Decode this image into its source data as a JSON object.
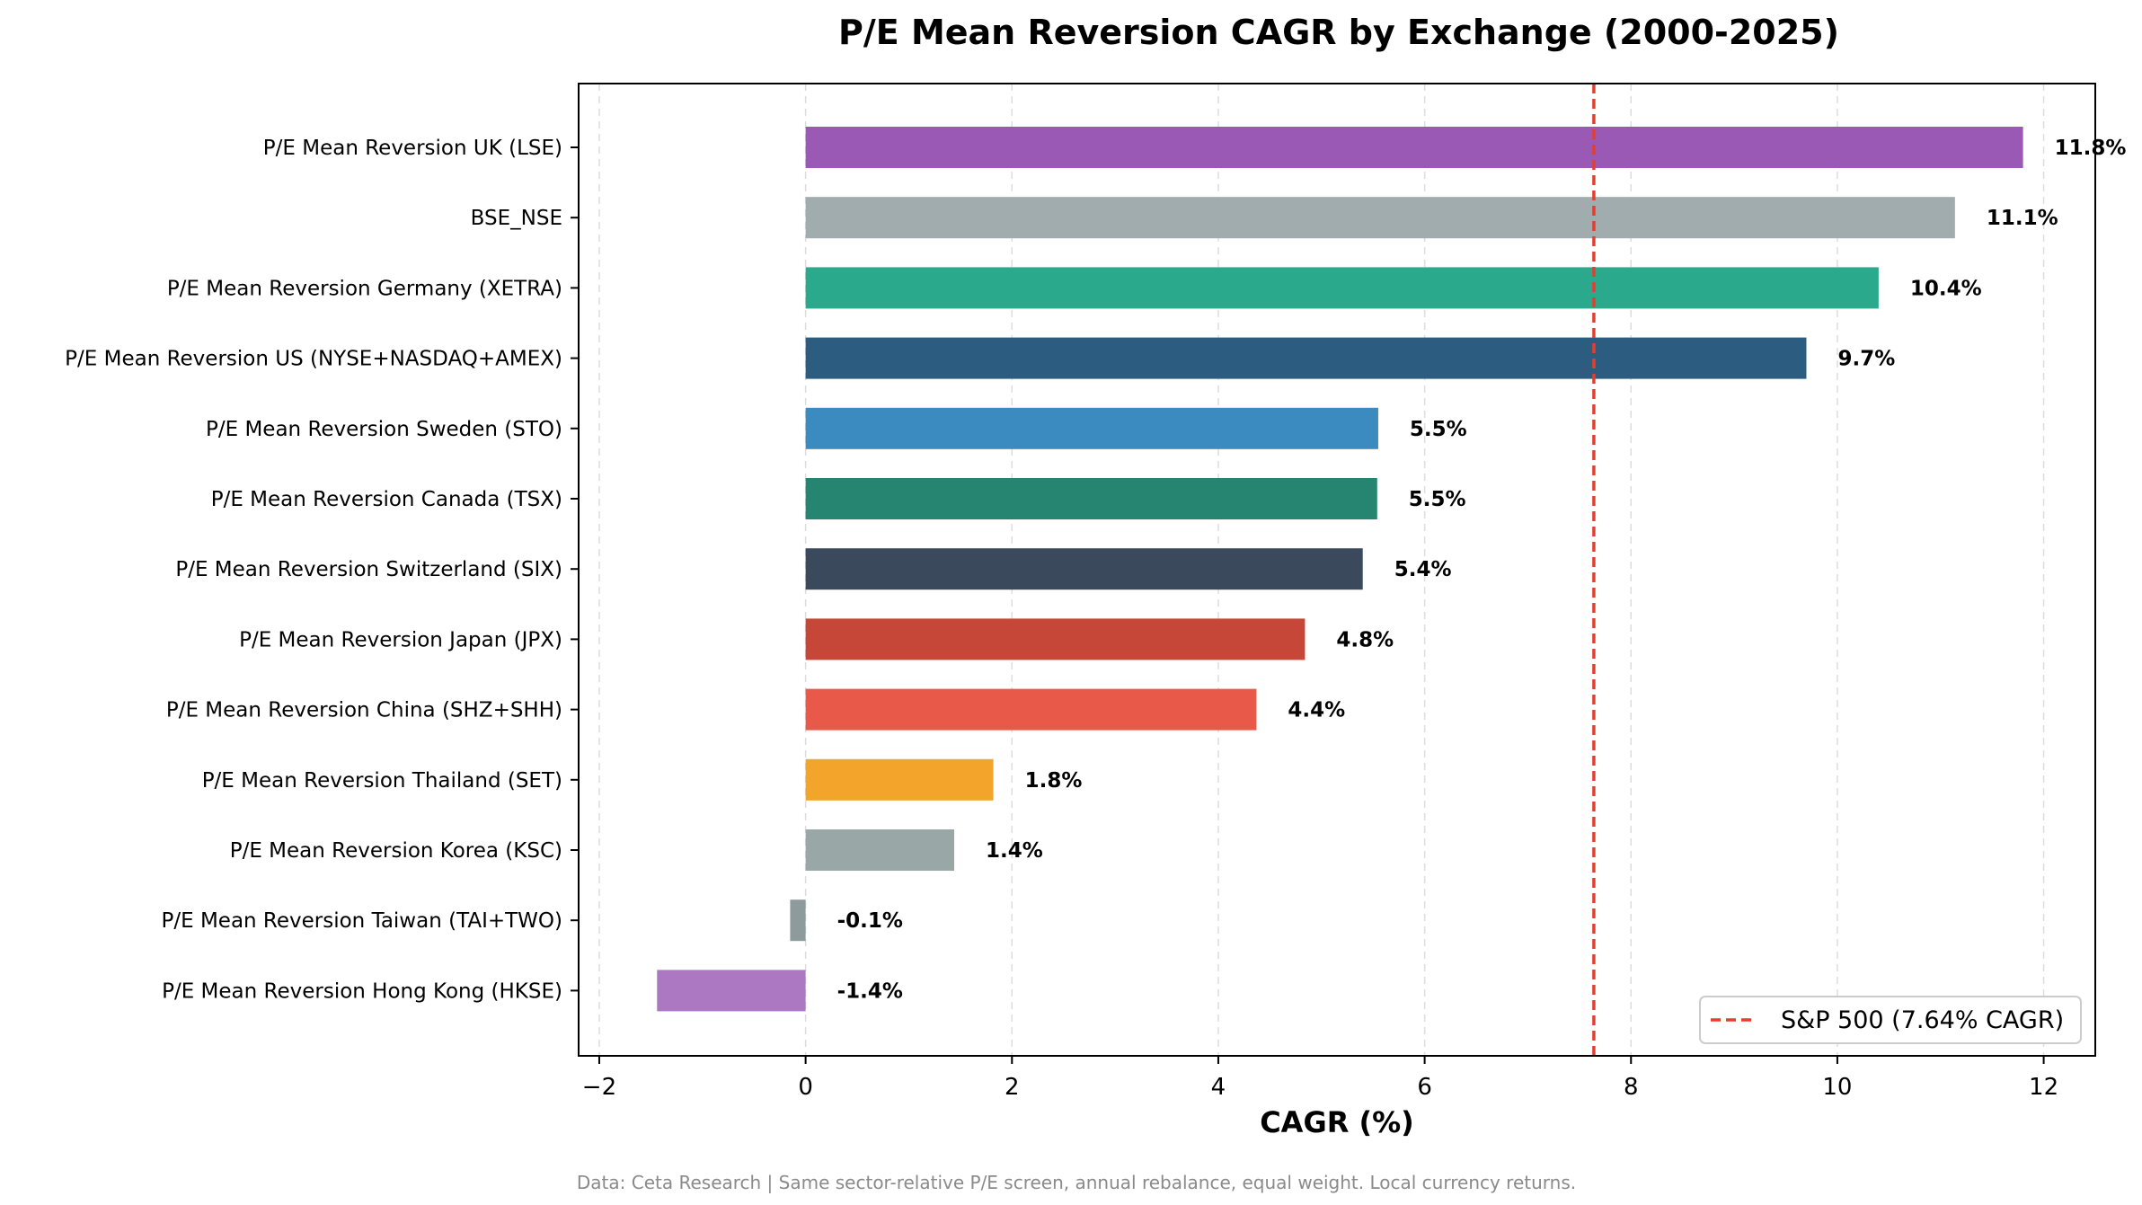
{
  "chart_data": {
    "type": "bar",
    "orientation": "horizontal",
    "title": "P/E Mean Reversion CAGR by Exchange (2000-2025)",
    "xlabel": "CAGR (%)",
    "ylabel": "",
    "xlim": [
      -2.2,
      12.5
    ],
    "xticks": [
      -2,
      0,
      2,
      4,
      6,
      8,
      10,
      12
    ],
    "xtick_labels": [
      "−2",
      "0",
      "2",
      "4",
      "6",
      "8",
      "10",
      "12"
    ],
    "grid": "vertical dashed",
    "categories": [
      "P/E Mean Reversion UK (LSE)",
      "BSE_NSE",
      "P/E Mean Reversion Germany (XETRA)",
      "P/E Mean Reversion US (NYSE+NASDAQ+AMEX)",
      "P/E Mean Reversion Sweden (STO)",
      "P/E Mean Reversion Canada (TSX)",
      "P/E Mean Reversion Switzerland (SIX)",
      "P/E Mean Reversion Japan (JPX)",
      "P/E Mean Reversion China (SHZ+SHH)",
      "P/E Mean Reversion Thailand (SET)",
      "P/E Mean Reversion Korea (KSC)",
      "P/E Mean Reversion Taiwan (TAI+TWO)",
      "P/E Mean Reversion Hong Kong (HKSE)"
    ],
    "values": [
      11.8,
      11.14,
      10.4,
      9.7,
      5.55,
      5.54,
      5.4,
      4.84,
      4.37,
      1.82,
      1.44,
      -0.15,
      -1.44
    ],
    "value_labels": [
      "11.8%",
      "11.1%",
      "10.4%",
      "9.7%",
      "5.5%",
      "5.5%",
      "5.4%",
      "4.8%",
      "4.4%",
      "1.8%",
      "1.4%",
      "-0.1%",
      "-1.4%"
    ],
    "bar_colors": [
      "#9b59b6",
      "#a0acad",
      "#2aa98d",
      "#2c5d80",
      "#3b8bc0",
      "#268570",
      "#3a4a5c",
      "#c64638",
      "#e8594a",
      "#f2a42b",
      "#9aa7a7",
      "#8e9b9c",
      "#ab78c1"
    ],
    "reference_line": {
      "value": 7.64,
      "color": "#e04030",
      "style": "dashed",
      "legend_label": "S&P 500 (7.64% CAGR)"
    },
    "legend_position": "lower-right"
  },
  "footnote": "Data: Ceta Research | Same sector-relative P/E screen, annual rebalance, equal weight. Local currency returns."
}
